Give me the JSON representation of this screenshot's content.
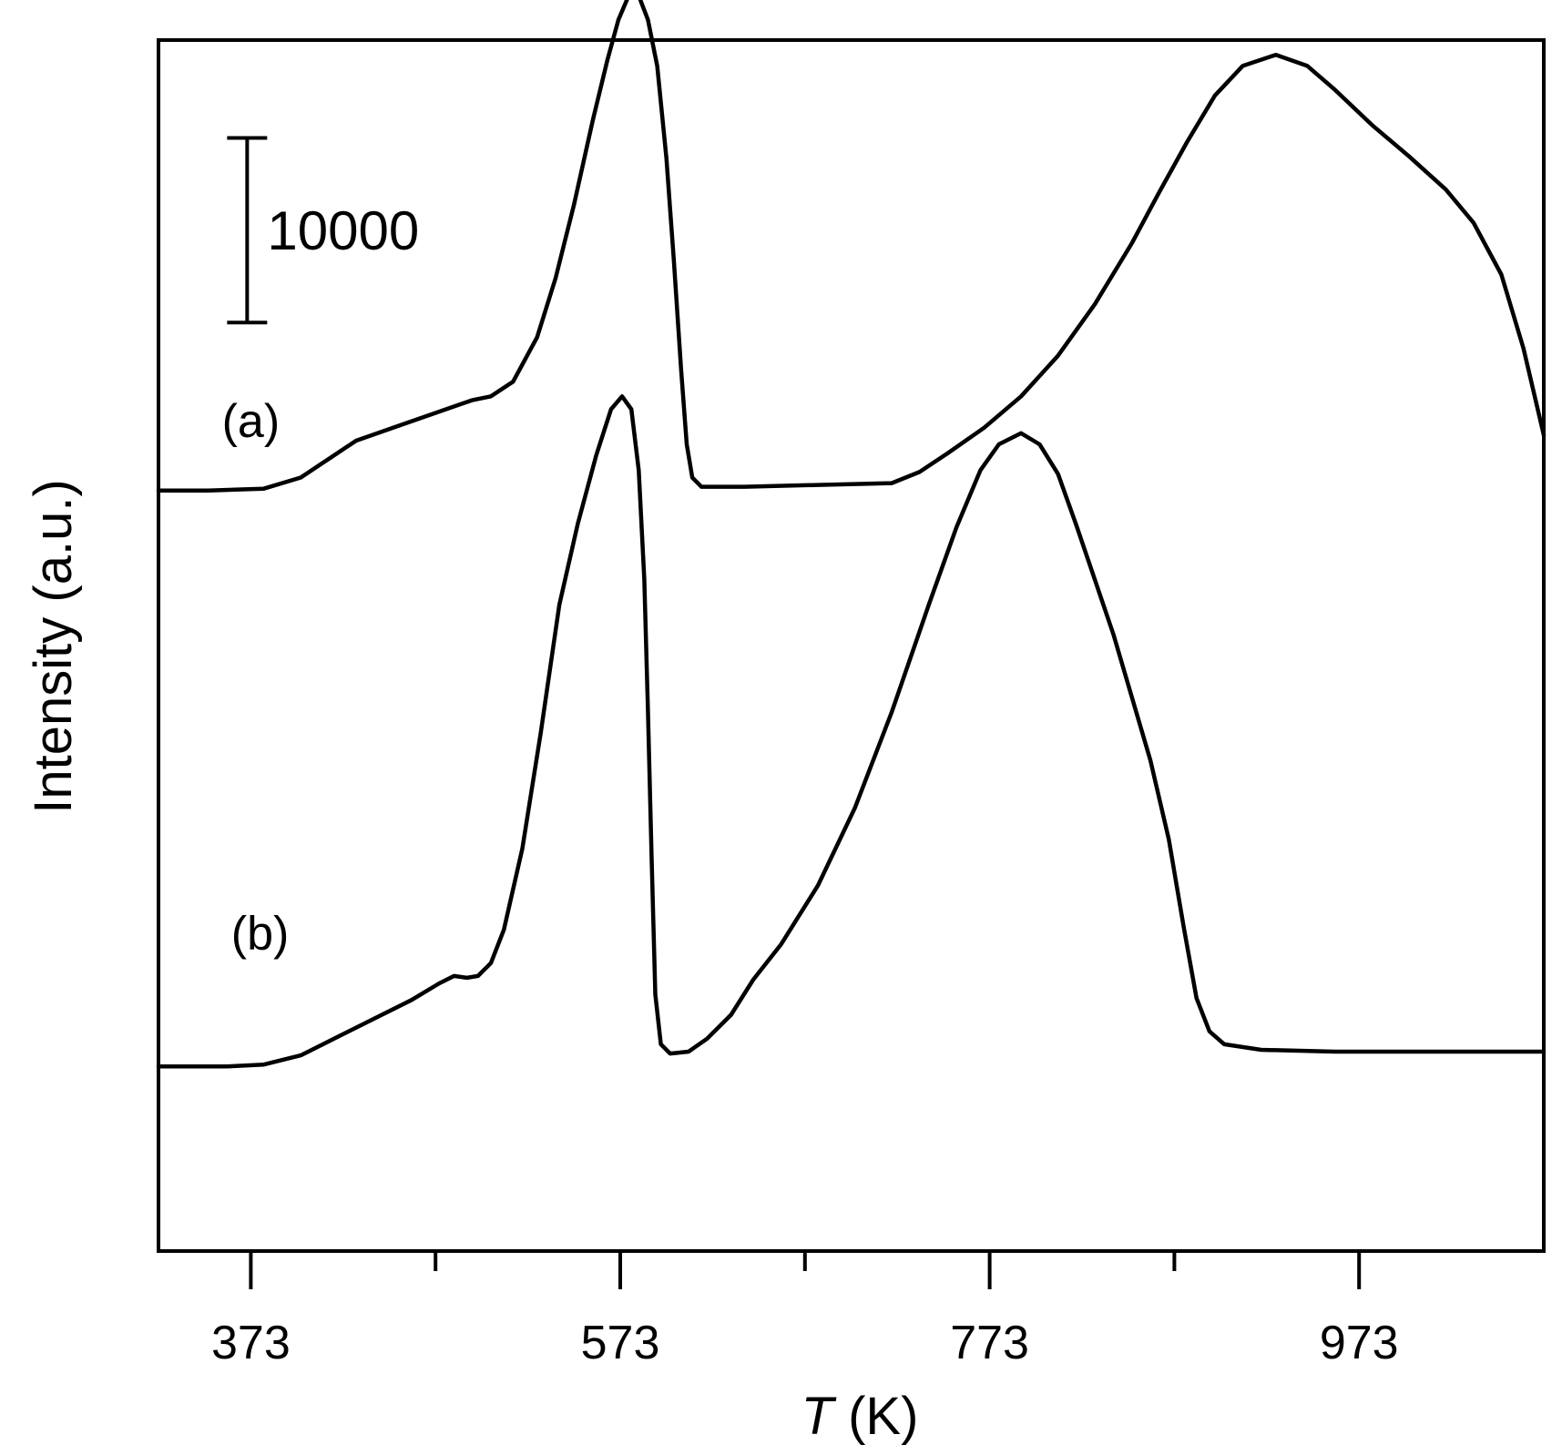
{
  "chart_data": {
    "type": "line",
    "title": "",
    "xlabel": {
      "italic": "T",
      "rest": " (K)"
    },
    "ylabel": "Intensity (a.u.)",
    "xlim": [
      323,
      1073
    ],
    "ylim": [
      -12300,
      53300
    ],
    "x_ticks_major": [
      373,
      573,
      773,
      973
    ],
    "x_ticks_minor": [
      473,
      673,
      873
    ],
    "tick_labels": [
      "373",
      "573",
      "773",
      "973"
    ],
    "grid": false,
    "legend": "none",
    "scale_bar": {
      "label": "10000",
      "value": 10000,
      "y_bottom": 38000,
      "x": 371
    },
    "series": [
      {
        "name": "(a)",
        "label_at": [
          373,
          31800
        ],
        "color": "#000000",
        "points": [
          [
            323,
            28900
          ],
          [
            350,
            28900
          ],
          [
            380,
            29000
          ],
          [
            400,
            29600
          ],
          [
            415,
            30600
          ],
          [
            430,
            31600
          ],
          [
            450,
            32300
          ],
          [
            470,
            33000
          ],
          [
            493,
            33800
          ],
          [
            503,
            34000
          ],
          [
            515,
            34800
          ],
          [
            528,
            37200
          ],
          [
            538,
            40400
          ],
          [
            548,
            44400
          ],
          [
            558,
            48900
          ],
          [
            566,
            52200
          ],
          [
            572,
            54400
          ],
          [
            578,
            55800
          ],
          [
            583,
            55700
          ],
          [
            588,
            54400
          ],
          [
            593,
            51900
          ],
          [
            598,
            46900
          ],
          [
            602,
            41400
          ],
          [
            606,
            35400
          ],
          [
            609,
            31400
          ],
          [
            612,
            29600
          ],
          [
            617,
            29100
          ],
          [
            640,
            29100
          ],
          [
            680,
            29200
          ],
          [
            720,
            29300
          ],
          [
            735,
            29900
          ],
          [
            750,
            30900
          ],
          [
            770,
            32300
          ],
          [
            790,
            34000
          ],
          [
            810,
            36200
          ],
          [
            830,
            39000
          ],
          [
            850,
            42300
          ],
          [
            865,
            45100
          ],
          [
            880,
            47800
          ],
          [
            895,
            50300
          ],
          [
            910,
            51900
          ],
          [
            928,
            52500
          ],
          [
            945,
            51900
          ],
          [
            960,
            50600
          ],
          [
            980,
            48700
          ],
          [
            1000,
            47000
          ],
          [
            1020,
            45200
          ],
          [
            1035,
            43400
          ],
          [
            1050,
            40600
          ],
          [
            1062,
            36600
          ],
          [
            1073,
            31900
          ]
        ]
      },
      {
        "name": "(b)",
        "label_at": [
          378,
          4050
        ],
        "color": "#000000",
        "points": [
          [
            323,
            -2300
          ],
          [
            360,
            -2300
          ],
          [
            380,
            -2200
          ],
          [
            400,
            -1700
          ],
          [
            420,
            -700
          ],
          [
            440,
            300
          ],
          [
            460,
            1300
          ],
          [
            475,
            2200
          ],
          [
            483,
            2600
          ],
          [
            490,
            2500
          ],
          [
            496,
            2600
          ],
          [
            503,
            3300
          ],
          [
            510,
            5100
          ],
          [
            520,
            9500
          ],
          [
            530,
            15800
          ],
          [
            540,
            22700
          ],
          [
            550,
            27100
          ],
          [
            560,
            30800
          ],
          [
            568,
            33300
          ],
          [
            574,
            34000
          ],
          [
            579,
            33300
          ],
          [
            583,
            30000
          ],
          [
            586,
            24100
          ],
          [
            588,
            17000
          ],
          [
            590,
            8900
          ],
          [
            592,
            1600
          ],
          [
            595,
            -1100
          ],
          [
            600,
            -1600
          ],
          [
            610,
            -1500
          ],
          [
            620,
            -800
          ],
          [
            633,
            500
          ],
          [
            645,
            2400
          ],
          [
            660,
            4300
          ],
          [
            680,
            7500
          ],
          [
            700,
            11700
          ],
          [
            720,
            16900
          ],
          [
            740,
            22700
          ],
          [
            755,
            26900
          ],
          [
            768,
            30000
          ],
          [
            778,
            31400
          ],
          [
            790,
            32000
          ],
          [
            800,
            31400
          ],
          [
            810,
            29800
          ],
          [
            820,
            27000
          ],
          [
            840,
            21100
          ],
          [
            860,
            14300
          ],
          [
            870,
            10000
          ],
          [
            878,
            5300
          ],
          [
            885,
            1400
          ],
          [
            892,
            -400
          ],
          [
            900,
            -1100
          ],
          [
            920,
            -1400
          ],
          [
            960,
            -1500
          ],
          [
            1000,
            -1500
          ],
          [
            1073,
            -1500
          ]
        ]
      }
    ]
  }
}
